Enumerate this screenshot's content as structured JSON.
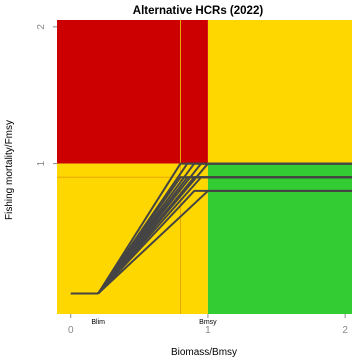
{
  "chart_data": {
    "type": "line",
    "title": "Alternative HCRs (2022)",
    "xlabel": "Biomass/Bmsy",
    "ylabel": "Fishing mortality/Fmsy",
    "xlim": [
      -0.1,
      2.05
    ],
    "ylim": [
      -0.1,
      2.05
    ],
    "x_ticks": [
      0,
      1,
      2
    ],
    "y_ticks": [
      1,
      2
    ],
    "reference_labels": [
      {
        "label": "Blim",
        "x": 0.2
      },
      {
        "label": "Bmsy",
        "x": 1.0
      }
    ],
    "zones": [
      {
        "name": "overfished-overfishing",
        "color": "#CC0000",
        "x": [
          -0.1,
          1.0
        ],
        "y": [
          1.0,
          2.05
        ]
      },
      {
        "name": "healthy-overfishing",
        "color": "#FFD700",
        "x": [
          1.0,
          2.05
        ],
        "y": [
          1.0,
          2.05
        ]
      },
      {
        "name": "overfished-no-overfishing",
        "color": "#FFD700",
        "x": [
          -0.1,
          1.0
        ],
        "y": [
          -0.1,
          1.0
        ]
      },
      {
        "name": "healthy-no-overfishing",
        "color": "#33CC33",
        "x": [
          1.0,
          2.05
        ],
        "y": [
          -0.1,
          1.0
        ]
      }
    ],
    "reference_lines": [
      {
        "orientation": "horizontal",
        "value": 0.9,
        "color": "#E6A800"
      },
      {
        "orientation": "vertical",
        "value": 0.8,
        "color": "#E6A800"
      }
    ],
    "line_color": "#444444",
    "floor": {
      "x": [
        0.0,
        0.2
      ],
      "y": 0.05
    },
    "series": [
      {
        "x": [
          0.2,
          0.8,
          2.05
        ],
        "y": [
          0.05,
          1.0,
          1.0
        ]
      },
      {
        "x": [
          0.2,
          0.85,
          2.05
        ],
        "y": [
          0.05,
          1.0,
          1.0
        ]
      },
      {
        "x": [
          0.2,
          0.9,
          2.05
        ],
        "y": [
          0.05,
          1.0,
          1.0
        ]
      },
      {
        "x": [
          0.2,
          0.95,
          2.05
        ],
        "y": [
          0.05,
          1.0,
          1.0
        ]
      },
      {
        "x": [
          0.2,
          1.0,
          2.05
        ],
        "y": [
          0.05,
          1.0,
          1.0
        ]
      },
      {
        "x": [
          0.2,
          0.8,
          2.05
        ],
        "y": [
          0.05,
          0.9,
          0.9
        ]
      },
      {
        "x": [
          0.2,
          0.85,
          2.05
        ],
        "y": [
          0.05,
          0.9,
          0.9
        ]
      },
      {
        "x": [
          0.2,
          0.9,
          2.05
        ],
        "y": [
          0.05,
          0.9,
          0.9
        ]
      },
      {
        "x": [
          0.2,
          0.95,
          2.05
        ],
        "y": [
          0.05,
          0.9,
          0.9
        ]
      },
      {
        "x": [
          0.2,
          1.0,
          2.05
        ],
        "y": [
          0.05,
          0.8,
          0.8
        ]
      },
      {
        "x": [
          0.2,
          0.9,
          2.05
        ],
        "y": [
          0.05,
          0.8,
          0.8
        ]
      }
    ]
  }
}
